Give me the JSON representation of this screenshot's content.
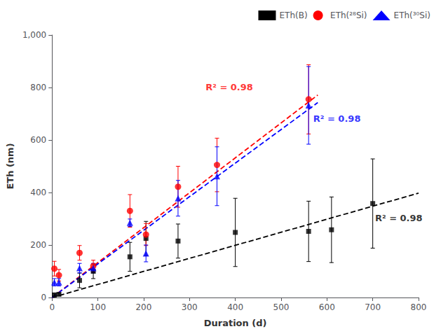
{
  "chart_data": {
    "type": "scatter",
    "title": "",
    "xlabel": "Duration (d)",
    "ylabel": "ETh (nm)",
    "xlim": [
      0,
      800
    ],
    "ylim": [
      0,
      1000
    ],
    "xticks": [
      0,
      100,
      200,
      300,
      400,
      500,
      600,
      700,
      800
    ],
    "yticks": [
      0,
      200,
      400,
      600,
      800,
      1000
    ],
    "grid": false,
    "legend": "upper right",
    "series": [
      {
        "type": "line",
        "color": "#000000",
        "line_style": "dashed",
        "x": [
          0,
          800
        ],
        "values": [
          0,
          397.6
        ]
      },
      {
        "type": "line",
        "color": "#ff0000",
        "line_style": "dashed",
        "x": [
          0,
          580
        ],
        "values": [
          0,
          771.4
        ]
      },
      {
        "type": "line",
        "color": "#0000ff",
        "line_style": "dashed",
        "x": [
          0,
          580
        ],
        "values": [
          0,
          742.4
        ]
      },
      {
        "type": "scatter",
        "name": "ETh(B)",
        "color": "#000000",
        "marker": "square",
        "x": [
          5,
          15,
          60,
          90,
          170,
          205,
          275,
          400,
          560,
          610,
          700
        ],
        "values": [
          10,
          12,
          65,
          100,
          155,
          225,
          215,
          248,
          252,
          258,
          358
        ],
        "errors": [
          4,
          4,
          28,
          28,
          55,
          65,
          65,
          130,
          115,
          125,
          170
        ]
      },
      {
        "type": "scatter",
        "name": "ETh(²⁸Si)",
        "color": "#ff0000",
        "marker": "circle",
        "x": [
          5,
          15,
          60,
          90,
          170,
          205,
          275,
          360,
          560
        ],
        "values": [
          110,
          85,
          170,
          120,
          330,
          240,
          422,
          505,
          755
        ],
        "errors": [
          28,
          22,
          28,
          22,
          62,
          42,
          78,
          102,
          132
        ]
      },
      {
        "type": "scatter",
        "name": "ETh(³⁰Si)",
        "color": "#0000ff",
        "marker": "triangle",
        "x": [
          5,
          15,
          60,
          90,
          170,
          205,
          275,
          360,
          560
        ],
        "values": [
          58,
          58,
          112,
          112,
          285,
          168,
          378,
          462,
          732
        ],
        "errors": [
          14,
          14,
          18,
          18,
          14,
          32,
          68,
          112,
          148
        ]
      }
    ],
    "annotations": [
      {
        "text": "R² = 0.98",
        "x": 335,
        "y": 785,
        "color": "#ff0000"
      },
      {
        "text": "R² = 0.98",
        "x": 570,
        "y": 665,
        "color": "#0000ff"
      },
      {
        "text": "R² = 0.98",
        "x": 705,
        "y": 285,
        "color": "#000000"
      }
    ]
  }
}
